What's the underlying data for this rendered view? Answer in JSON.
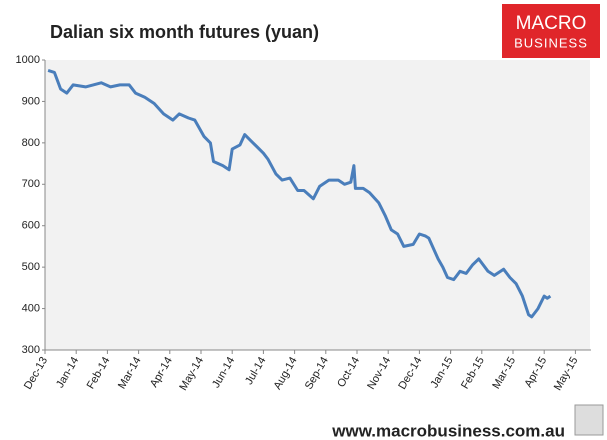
{
  "chart_data": {
    "type": "line",
    "title": "Dalian six month futures (yuan)",
    "color": "#4a7ebb",
    "x": [
      0.1,
      0.3,
      0.5,
      0.7,
      0.9,
      1.3,
      1.8,
      2.1,
      2.4,
      2.7,
      2.9,
      3.2,
      3.5,
      3.8,
      4.1,
      4.3,
      4.6,
      4.8,
      5.1,
      5.3,
      5.4,
      5.7,
      5.9,
      6.0,
      6.25,
      6.4,
      6.6,
      6.8,
      7.0,
      7.15,
      7.4,
      7.6,
      7.85,
      8.1,
      8.3,
      8.6,
      8.8,
      9.1,
      9.4,
      9.6,
      9.8,
      9.9,
      9.95,
      10.2,
      10.4,
      10.7,
      10.9,
      11.1,
      11.3,
      11.5,
      11.8,
      12.0,
      12.2,
      12.3,
      12.6,
      12.75,
      12.9,
      13.1,
      13.3,
      13.5,
      13.7,
      13.9,
      14.2,
      14.4,
      14.7,
      14.9,
      15.1,
      15.3,
      15.5,
      15.6,
      15.8,
      16.0,
      16.1,
      16.2
    ],
    "values": [
      975,
      970,
      930,
      920,
      940,
      935,
      945,
      935,
      940,
      940,
      920,
      910,
      895,
      870,
      855,
      870,
      860,
      855,
      815,
      800,
      755,
      745,
      735,
      785,
      795,
      820,
      805,
      790,
      775,
      760,
      725,
      710,
      715,
      685,
      685,
      665,
      695,
      710,
      710,
      700,
      705,
      745,
      690,
      690,
      680,
      655,
      625,
      590,
      580,
      550,
      555,
      580,
      575,
      570,
      520,
      500,
      475,
      470,
      490,
      485,
      505,
      520,
      490,
      480,
      495,
      475,
      460,
      430,
      385,
      380,
      400,
      430,
      425,
      430
    ],
    "xlim": [
      0,
      17.5
    ],
    "xticks": [
      {
        "value": 0,
        "label": "Dec-13"
      },
      {
        "value": 1,
        "label": "Jan-14"
      },
      {
        "value": 2,
        "label": "Feb-14"
      },
      {
        "value": 3,
        "label": "Mar-14"
      },
      {
        "value": 4,
        "label": "Apr-14"
      },
      {
        "value": 5,
        "label": "May-14"
      },
      {
        "value": 6,
        "label": "Jun-14"
      },
      {
        "value": 7,
        "label": "Jul-14"
      },
      {
        "value": 8,
        "label": "Aug-14"
      },
      {
        "value": 9,
        "label": "Sep-14"
      },
      {
        "value": 10,
        "label": "Oct-14"
      },
      {
        "value": 11,
        "label": "Nov-14"
      },
      {
        "value": 12,
        "label": "Dec-14"
      },
      {
        "value": 13,
        "label": "Jan-15"
      },
      {
        "value": 14,
        "label": "Feb-15"
      },
      {
        "value": 15,
        "label": "Mar-15"
      },
      {
        "value": 16,
        "label": "Apr-15"
      },
      {
        "value": 17,
        "label": "May-15"
      }
    ],
    "ylim": [
      300,
      1000
    ],
    "yticks": [
      300,
      400,
      500,
      600,
      700,
      800,
      900,
      1000
    ],
    "grid": false
  },
  "logo": [
    "MACRO",
    "BUSINESS"
  ],
  "footer": "www.macrobusiness.com.au"
}
